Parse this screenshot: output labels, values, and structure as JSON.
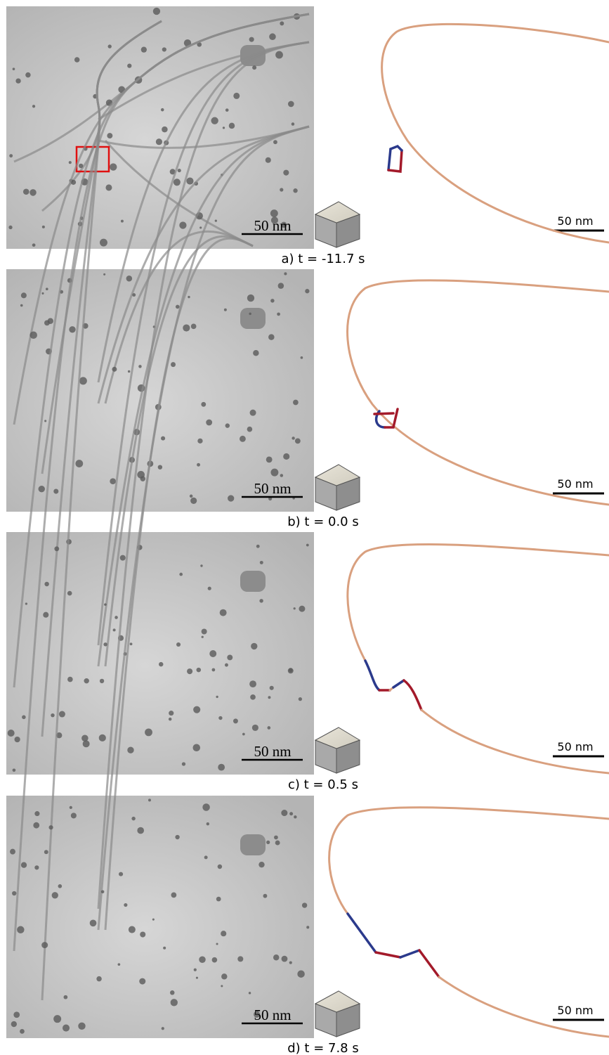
{
  "panels": [
    {
      "caption": "a) t = -11.7 s",
      "micrograph_scale_bar": "50 nm",
      "simulation_scale_bar": "50 nm"
    },
    {
      "caption": "b) t = 0.0 s",
      "micrograph_scale_bar": "50 nm",
      "simulation_scale_bar": "50 nm"
    },
    {
      "caption": "c) t = 0.5 s",
      "micrograph_scale_bar": "50 nm",
      "simulation_scale_bar": "50 nm"
    },
    {
      "caption": "d) t = 7.8 s",
      "micrograph_scale_bar": "50 nm",
      "simulation_scale_bar": "50 nm"
    }
  ]
}
